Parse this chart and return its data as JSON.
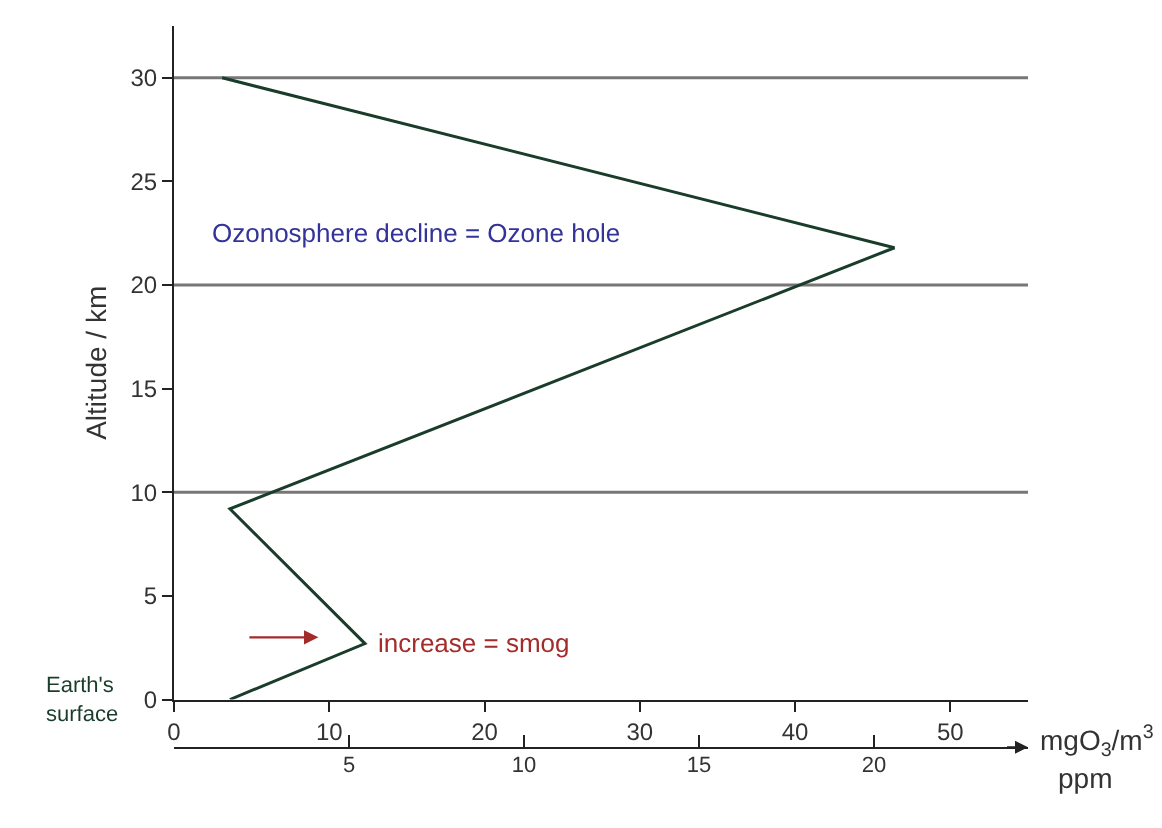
{
  "chart_data": {
    "type": "line",
    "x": [
      3.1,
      46.4,
      3.6,
      12.3,
      3.6
    ],
    "series": [
      {
        "color": "#1a3d2b",
        "values": [
          30,
          21.8,
          9.2,
          2.7,
          0
        ]
      }
    ],
    "xlabel": "mgO$_{3}$/m$^{3}$",
    "ylabel": "Altitude / km",
    "x2label": "ppm",
    "xlim": [
      0,
      55
    ],
    "xticks": [
      0,
      10,
      20,
      30,
      40,
      50
    ],
    "ylim": [
      0,
      32.5
    ],
    "yticks": [
      0,
      5,
      10,
      15,
      20,
      25,
      30
    ],
    "x2lim": [
      0,
      24.4
    ],
    "x2ticks": [
      5,
      10,
      15,
      20
    ],
    "ref_lines": [
      {
        "axis": "y",
        "value": 10,
        "color": "#777777"
      },
      {
        "axis": "y",
        "value": 20,
        "color": "#777777"
      },
      {
        "axis": "y",
        "value": 30,
        "color": "#777777"
      }
    ],
    "annotations": [
      "Ozonosphere decline = Ozone hole",
      {
        "text": "increase = smog",
        "x": 12.3,
        "y": 2.7
      },
      "Earth's surface"
    ],
    "grid": false,
    "marker": "none",
    "line_style": "solid"
  }
}
